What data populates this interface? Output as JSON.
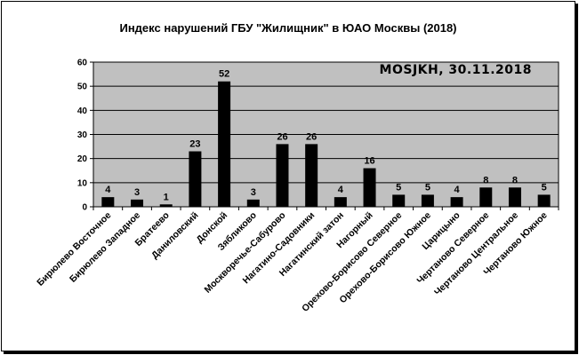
{
  "chart_data": {
    "type": "bar",
    "title": "Индекс нарушений ГБУ \"Жилищник\" в ЮАО Москвы (2018)",
    "annotation": "MOSJKH, 30.11.2018",
    "categories": [
      "Бирюлево Восточное",
      "Бирюлево Западное",
      "Братеево",
      "Даниловский",
      "Донской",
      "Зябликово",
      "Москворечье-Сабурово",
      "Нагатино-Садовники",
      "Нагатинский затон",
      "Нагорный",
      "Орехово-Борисово Северное",
      "Орехово-Борисово Южное",
      "Царицыно",
      "Чертаново Северное",
      "Чертаново Центральное",
      "Чертаново Южное"
    ],
    "values": [
      4,
      3,
      1,
      23,
      52,
      3,
      26,
      26,
      4,
      16,
      5,
      5,
      4,
      8,
      8,
      5
    ],
    "ylim": [
      0,
      60
    ],
    "yticks": [
      0,
      10,
      20,
      30,
      40,
      50,
      60
    ],
    "grid": true,
    "legend": "none",
    "colors": {
      "bar": "#000000",
      "plot_bg": "#c0c0c0",
      "grid": "#000000"
    }
  }
}
